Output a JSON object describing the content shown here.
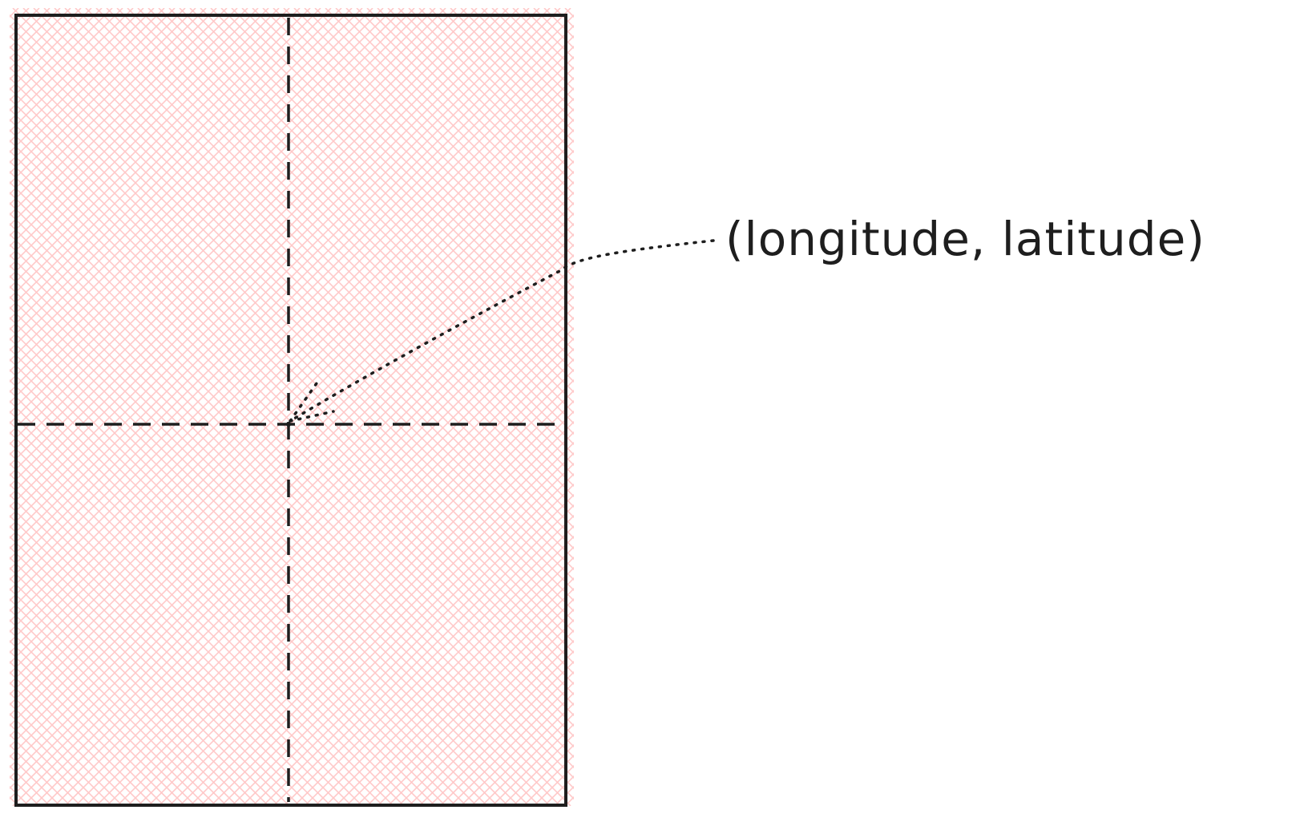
{
  "diagram": {
    "label": "(longitude, latitude)",
    "colors": {
      "stroke": "#1e1e1e",
      "hatch": "#ffc9c9",
      "background": "#ffffff"
    }
  }
}
